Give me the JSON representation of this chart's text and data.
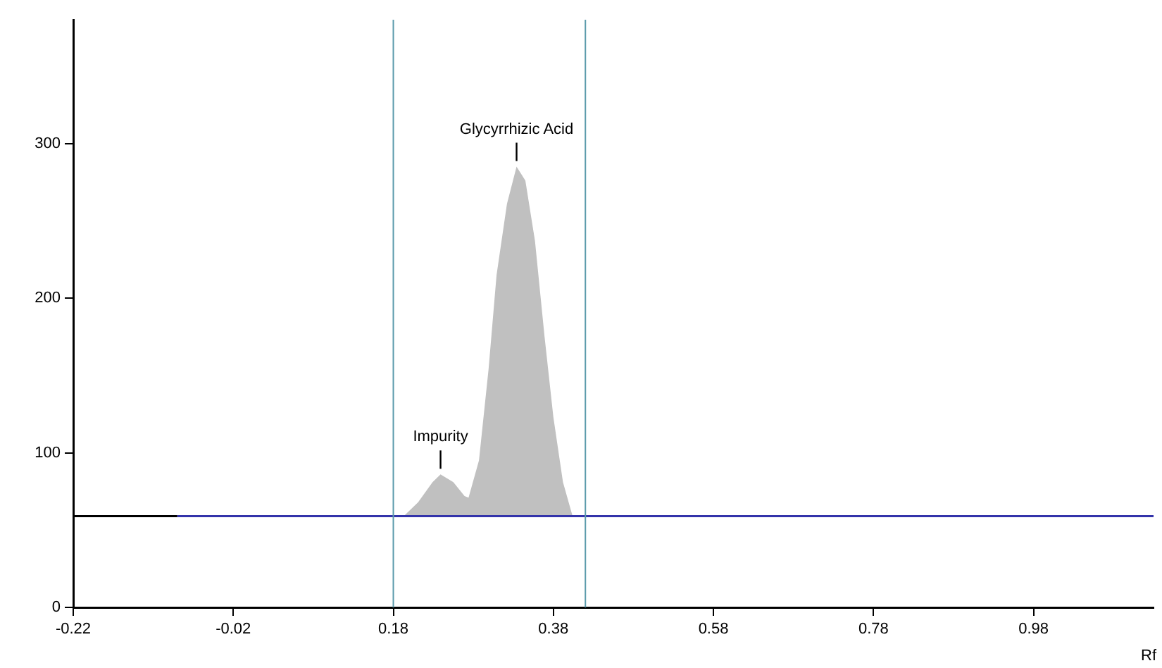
{
  "chart_data": {
    "type": "line",
    "xlabel": "Rf",
    "xlim": [
      -0.22,
      1.13
    ],
    "ylim": [
      0,
      380
    ],
    "xticks": [
      -0.22,
      -0.02,
      0.18,
      0.38,
      0.58,
      0.78,
      0.98
    ],
    "yticks": [
      0,
      100,
      200,
      300
    ],
    "grid": false,
    "legend": false,
    "marker": "none",
    "series": [
      {
        "color": "#000000",
        "x": [
          -0.22,
          -0.09
        ],
        "values": [
          59,
          59
        ]
      },
      {
        "color": "#3333aa",
        "x": [
          -0.09,
          1.13
        ],
        "values": [
          59,
          59
        ]
      },
      {
        "type": "area",
        "color": "#c0c0c0",
        "x": [
          0.193,
          0.211,
          0.229,
          0.239,
          0.255,
          0.269,
          0.274,
          0.287,
          0.299,
          0.309,
          0.322,
          0.334,
          0.345,
          0.357,
          0.369,
          0.38,
          0.392,
          0.404
        ],
        "values": [
          59,
          68,
          81,
          86,
          81,
          72,
          71,
          95,
          154,
          215,
          261,
          285,
          276,
          237,
          175,
          123,
          81,
          59
        ]
      }
    ],
    "ref_lines": [
      {
        "axis": "x",
        "value": 0.18,
        "color": "#5b9aab"
      },
      {
        "axis": "x",
        "value": 0.42,
        "color": "#5b9aab"
      }
    ],
    "annotations": [
      {
        "text": "Impurity",
        "x": 0.239,
        "y": 86
      },
      {
        "text": "Glycyrrhizic Acid",
        "x": 0.334,
        "y": 285
      }
    ]
  }
}
